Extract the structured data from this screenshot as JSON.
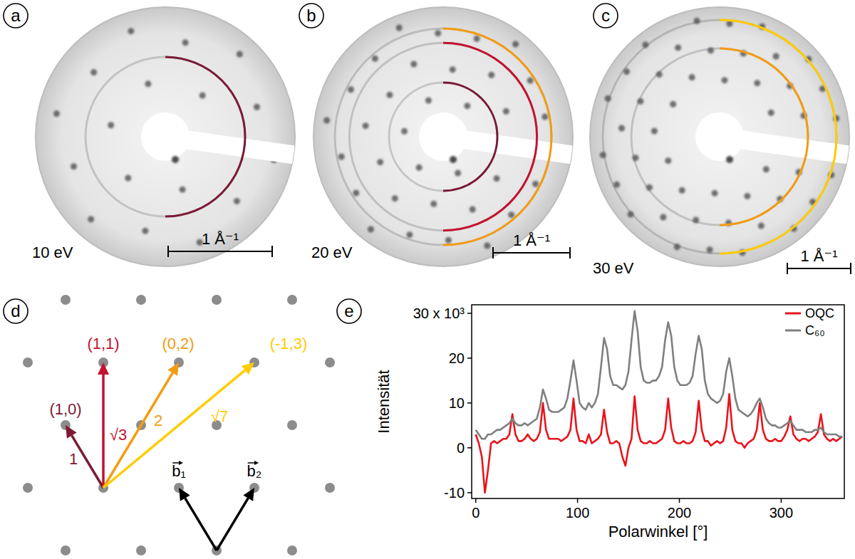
{
  "panels": [
    {
      "letter": "a",
      "energy": "10 eV",
      "scale_label": "1 Å⁻¹",
      "rings": [
        [
          1,
          0
        ]
      ]
    },
    {
      "letter": "b",
      "energy": "20 eV",
      "scale_label": "1 Å⁻¹",
      "rings": [
        [
          1,
          0
        ],
        [
          1,
          1
        ],
        [
          0,
          2
        ]
      ]
    },
    {
      "letter": "c",
      "energy": "30 eV",
      "scale_label": "1 Å⁻¹",
      "rings": [
        [
          0,
          2
        ],
        [
          -1,
          3
        ]
      ]
    }
  ],
  "lattice": {
    "letter": "d",
    "vectors": [
      {
        "label": "(1,0)",
        "h": 1,
        "k": 0,
        "length_label": "1",
        "color": "#7b1a35"
      },
      {
        "label": "(1,1)",
        "h": 1,
        "k": 1,
        "length_label": "√3",
        "color": "#c4122f"
      },
      {
        "label": "(0,2)",
        "h": 0,
        "k": 2,
        "length_label": "2",
        "color": "#f39c12"
      },
      {
        "label": "(-1,3)",
        "h": -1,
        "k": 3,
        "length_label": "√7",
        "color": "#ffcc00"
      }
    ],
    "basis": [
      "b₁",
      "b₂"
    ]
  },
  "panel_e": {
    "letter": "e"
  },
  "chart_data": {
    "type": "line",
    "x_label": "Polarwinkel [°]",
    "y_label": "Intensität",
    "x": [
      0,
      3,
      6,
      9,
      12,
      15,
      18,
      21,
      24,
      27,
      30,
      33,
      36,
      39,
      42,
      45,
      48,
      51,
      54,
      57,
      60,
      63,
      66,
      69,
      72,
      75,
      78,
      81,
      84,
      87,
      90,
      93,
      96,
      99,
      102,
      105,
      108,
      111,
      114,
      117,
      120,
      123,
      126,
      129,
      132,
      135,
      138,
      141,
      144,
      147,
      150,
      153,
      156,
      159,
      162,
      165,
      168,
      171,
      174,
      177,
      180,
      183,
      186,
      189,
      192,
      195,
      198,
      201,
      204,
      207,
      210,
      213,
      216,
      219,
      222,
      225,
      228,
      231,
      234,
      237,
      240,
      243,
      246,
      249,
      252,
      255,
      258,
      261,
      264,
      267,
      270,
      273,
      276,
      279,
      282,
      285,
      288,
      291,
      294,
      297,
      300,
      303,
      306,
      309,
      312,
      315,
      318,
      321,
      324,
      327,
      330,
      333,
      336,
      339,
      342,
      345,
      348,
      351,
      354,
      357,
      360
    ],
    "series": [
      {
        "name": "OQC",
        "color": "#e8141c",
        "values": [
          3,
          1,
          -2,
          -10,
          -5,
          1,
          1.5,
          1,
          1.5,
          2,
          2,
          3,
          7.5,
          3,
          1.5,
          1.5,
          2,
          3,
          2,
          1.5,
          2,
          3.5,
          10,
          4,
          2,
          2,
          2,
          2,
          1.5,
          2,
          2.5,
          4,
          11,
          4,
          1.5,
          1.5,
          1,
          3,
          1,
          1.5,
          2,
          3,
          8.5,
          3.5,
          1,
          1,
          1.5,
          1,
          -2,
          -4,
          0,
          2,
          11.5,
          4,
          1.5,
          1,
          1,
          1.5,
          1,
          1,
          1.5,
          2,
          4,
          11,
          4.5,
          1.5,
          1,
          1,
          1.5,
          1,
          1,
          1.5,
          3.5,
          10.5,
          4,
          1.5,
          1.5,
          0.5,
          1,
          1.5,
          1,
          1.5,
          4.5,
          12,
          4,
          1.5,
          1,
          1,
          0,
          1,
          1.5,
          2,
          4,
          10,
          4,
          2,
          1.5,
          1.5,
          2,
          1.5,
          1.5,
          2.5,
          4,
          7,
          3,
          2,
          1.5,
          2,
          2,
          1.5,
          2,
          2.5,
          3.5,
          7.5,
          3,
          2,
          1.5,
          2,
          1.5,
          2,
          2.5
        ]
      },
      {
        "name": "C₆₀",
        "color": "#7f7f7f",
        "values": [
          4,
          3,
          2,
          2,
          3,
          3,
          3.5,
          4,
          4,
          4.5,
          5,
          5.5,
          6.5,
          5.5,
          5,
          5,
          5.5,
          5,
          5.5,
          6,
          6.5,
          9,
          13,
          11,
          8.5,
          8,
          8,
          8,
          8.5,
          9,
          11,
          15,
          19.5,
          15,
          10,
          9,
          8.5,
          10,
          9,
          10,
          12,
          18,
          24.5,
          22,
          16,
          14,
          14,
          13.5,
          13,
          14,
          17,
          24,
          30.5,
          26,
          18,
          15,
          14.5,
          14.5,
          15,
          15,
          16,
          18,
          24,
          28,
          25,
          18,
          15,
          14,
          14,
          14,
          14.5,
          16,
          21,
          25,
          22,
          15,
          12,
          11,
          10.5,
          10,
          10.5,
          12,
          17,
          20,
          16,
          11,
          8.5,
          8,
          7.5,
          7,
          7.5,
          8.5,
          10,
          11,
          9,
          6.5,
          5.5,
          5,
          5,
          4.5,
          4.5,
          5,
          5.5,
          6,
          5,
          4,
          4,
          4,
          3.5,
          3.5,
          3.5,
          4,
          4,
          4.5,
          3.5,
          3,
          3,
          3,
          3,
          2.5,
          2.5
        ]
      }
    ],
    "xlim": [
      -4,
      362
    ],
    "ylim": [
      -11.3,
      31.9
    ],
    "xticks": [
      0,
      100,
      200,
      300
    ],
    "yticks": [
      -10,
      0,
      10,
      20,
      {
        "value": 30,
        "label": "30 x 10³"
      }
    ],
    "legend": "upper right",
    "grid": false
  }
}
